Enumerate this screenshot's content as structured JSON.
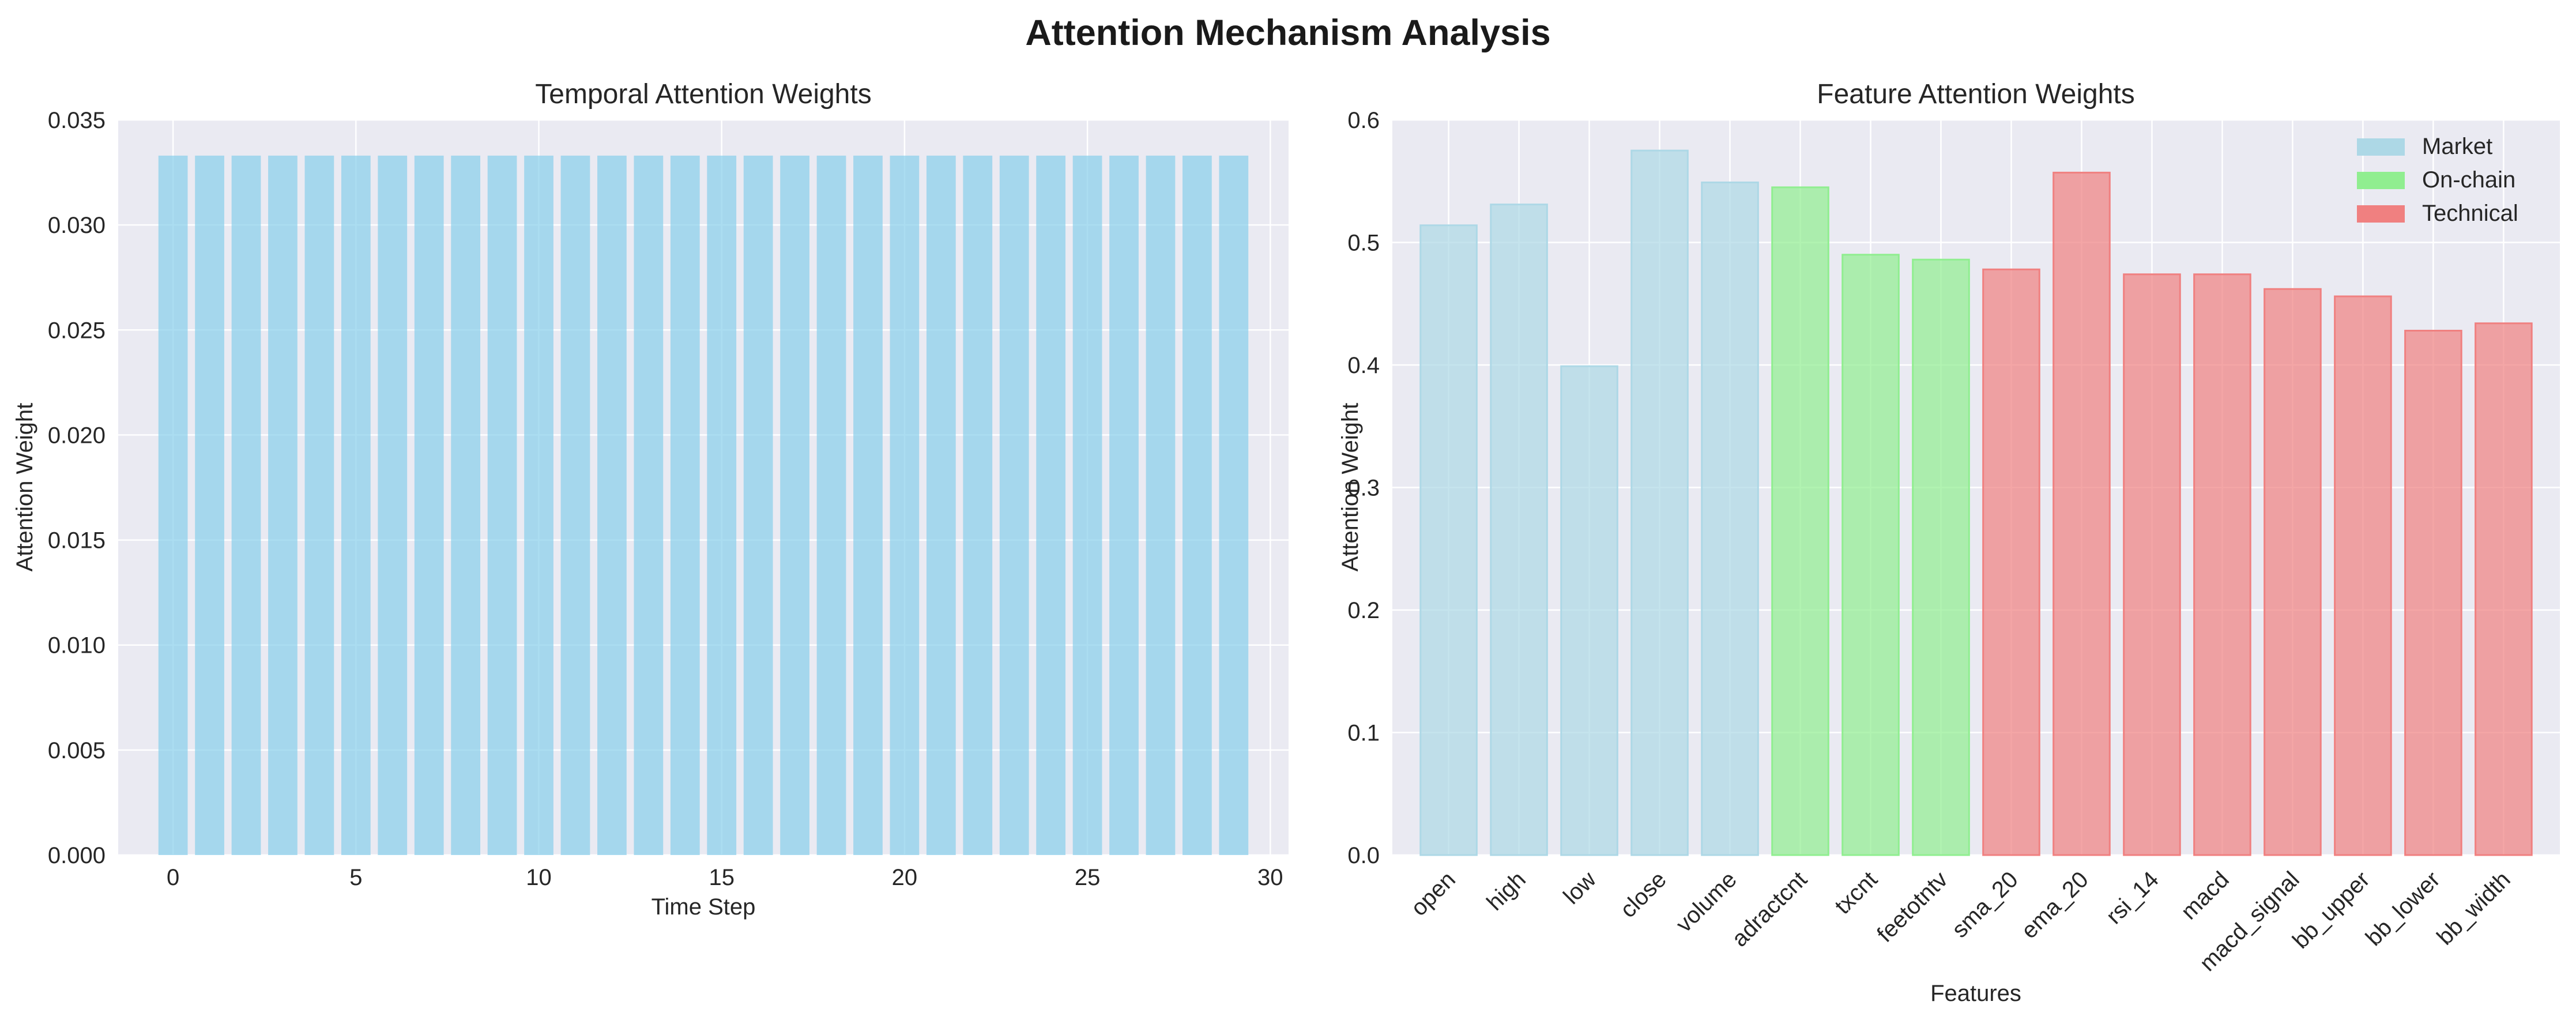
{
  "figure": {
    "title": "Attention Mechanism Analysis"
  },
  "chart_data": [
    {
      "type": "bar",
      "title": "Temporal Attention Weights",
      "xlabel": "Time Step",
      "ylabel": "Attention Weight",
      "x": [
        0,
        1,
        2,
        3,
        4,
        5,
        6,
        7,
        8,
        9,
        10,
        11,
        12,
        13,
        14,
        15,
        16,
        17,
        18,
        19,
        20,
        21,
        22,
        23,
        24,
        25,
        26,
        27,
        28,
        29
      ],
      "values": [
        0.0333,
        0.0333,
        0.0333,
        0.0333,
        0.0333,
        0.0333,
        0.0333,
        0.0333,
        0.0333,
        0.0333,
        0.0333,
        0.0333,
        0.0333,
        0.0333,
        0.0333,
        0.0333,
        0.0333,
        0.0333,
        0.0333,
        0.0333,
        0.0333,
        0.0333,
        0.0333,
        0.0333,
        0.0333,
        0.0333,
        0.0333,
        0.0333,
        0.0333,
        0.0333
      ],
      "xlim": [
        -1.5,
        30.5
      ],
      "ylim": [
        0,
        0.035
      ],
      "xticks": [
        "0",
        "5",
        "10",
        "15",
        "20",
        "25",
        "30"
      ],
      "yticks": [
        "0.000",
        "0.005",
        "0.010",
        "0.015",
        "0.020",
        "0.025",
        "0.030",
        "0.035"
      ],
      "bar_color": "#87ceeb",
      "grid": true
    },
    {
      "type": "bar",
      "title": "Feature Attention Weights",
      "xlabel": "Features",
      "ylabel": "Attention Weight",
      "categories": [
        "open",
        "high",
        "low",
        "close",
        "volume",
        "adractcnt",
        "txcnt",
        "feetotntv",
        "sma_20",
        "ema_20",
        "rsi_14",
        "macd",
        "macd_signal",
        "bb_upper",
        "bb_lower",
        "bb_width"
      ],
      "values": [
        0.514,
        0.531,
        0.399,
        0.575,
        0.549,
        0.545,
        0.49,
        0.486,
        0.478,
        0.557,
        0.474,
        0.474,
        0.462,
        0.456,
        0.428,
        0.434
      ],
      "groups": [
        "Market",
        "Market",
        "Market",
        "Market",
        "Market",
        "On-chain",
        "On-chain",
        "On-chain",
        "Technical",
        "Technical",
        "Technical",
        "Technical",
        "Technical",
        "Technical",
        "Technical",
        "Technical"
      ],
      "ylim": [
        0,
        0.6
      ],
      "yticks": [
        "0.0",
        "0.1",
        "0.2",
        "0.3",
        "0.4",
        "0.5",
        "0.6"
      ],
      "legend": {
        "position": "top-right",
        "entries": [
          {
            "name": "Market",
            "color": "#add8e6"
          },
          {
            "name": "On-chain",
            "color": "#90ee90"
          },
          {
            "name": "Technical",
            "color": "#f08080"
          }
        ]
      },
      "grid": true
    }
  ]
}
